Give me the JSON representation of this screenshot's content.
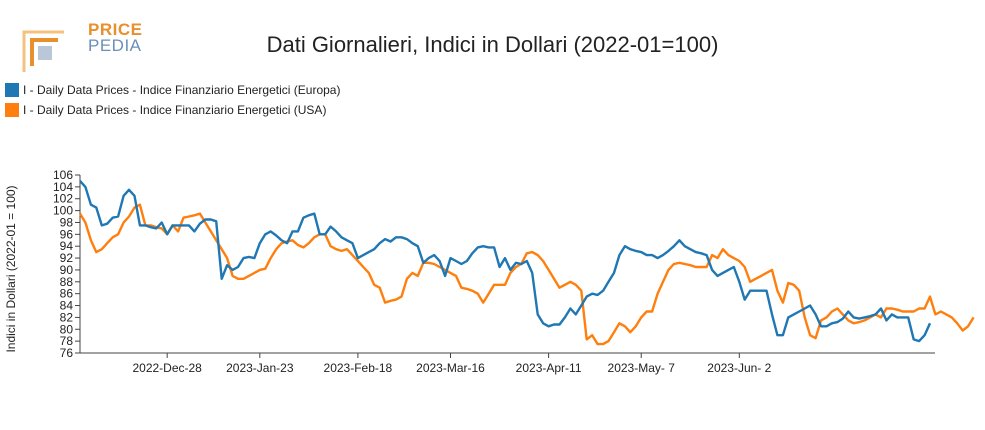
{
  "logo": {
    "word1": "PRICE",
    "word2": "PEDIA"
  },
  "chart_data": {
    "type": "line",
    "title": "Dati Giornalieri, Indici in Dollari (2022-01=100)",
    "ylabel": "Indici in Dollari (2022-01 = 100)",
    "xlabel": "",
    "ylim": [
      76,
      106
    ],
    "yticks": [
      76,
      78,
      80,
      82,
      84,
      86,
      88,
      90,
      92,
      94,
      96,
      98,
      100,
      102,
      104,
      106
    ],
    "x_tick_labels": [
      {
        "index": 16,
        "label": "2022-Dec-28"
      },
      {
        "index": 33,
        "label": "2023-Jan-23"
      },
      {
        "index": 51,
        "label": "2023-Feb-18"
      },
      {
        "index": 68,
        "label": "2023-Mar-16"
      },
      {
        "index": 86,
        "label": "2023-Apr-11"
      },
      {
        "index": 103,
        "label": "2023-May- 7"
      },
      {
        "index": 121,
        "label": "2023-Jun- 2"
      }
    ],
    "grid": false,
    "legend": "top-left",
    "series": [
      {
        "name": "I - Daily Data Prices - Indice Finanziario Energetici (Europa)",
        "color": "#1f77b4",
        "values": [
          105,
          104,
          101,
          100.5,
          97.5,
          97.8,
          98.8,
          99,
          102.5,
          103.5,
          102.5,
          97.5,
          97.5,
          97.2,
          97,
          98,
          96,
          97.5,
          97.5,
          97.5,
          97.5,
          96.5,
          97.8,
          98.5,
          98.5,
          98.2,
          88.5,
          90.8,
          90,
          90.5,
          92,
          92.2,
          92,
          94.5,
          96,
          96.5,
          95.8,
          95,
          94.5,
          96.5,
          96.5,
          98.8,
          99.2,
          99.5,
          96,
          96,
          97.3,
          96.5,
          95.5,
          95,
          94.5,
          92,
          92.5,
          93,
          93.5,
          94.5,
          95.2,
          94.8,
          95.5,
          95.5,
          95.2,
          94.5,
          94,
          91.2,
          92,
          92.5,
          91.5,
          89,
          92,
          91.5,
          91,
          91.5,
          92.8,
          93.8,
          94,
          93.8,
          93.8,
          90.5,
          92,
          90,
          91.2,
          91,
          91.5,
          89.5,
          82.5,
          81,
          80.5,
          80.8,
          80.8,
          82,
          83.5,
          82.5,
          84,
          85.5,
          86,
          85.8,
          86.5,
          88,
          89.5,
          92.5,
          94,
          93.5,
          93.2,
          93,
          92.5,
          92.5,
          92,
          92.5,
          93.2,
          94,
          95,
          94,
          93.5,
          93,
          92.8,
          92.5,
          90,
          89,
          89.5,
          90,
          90.5,
          88,
          85,
          86.5,
          86.5,
          86.5,
          86.5,
          82.5,
          79,
          79,
          82,
          82.5,
          83,
          83.5,
          84,
          82.5,
          80.5,
          80.5,
          81,
          81.2,
          81.8,
          83,
          82,
          81.8,
          82,
          82.2,
          82.5,
          83.5,
          81.5,
          82.5,
          82,
          82,
          82,
          78.3,
          78,
          79,
          81
        ]
      },
      {
        "name": "I - Daily Data Prices - Indice Finanziario Energetici (USA)",
        "color": "#ff7f0e",
        "values": [
          99.5,
          98,
          95,
          93,
          93.5,
          94.5,
          95.5,
          96,
          98,
          99,
          100.5,
          101,
          97.5,
          97.5,
          97.2,
          97,
          96,
          97.5,
          96.5,
          98.8,
          99,
          99.2,
          99.5,
          98,
          96.5,
          95,
          93.5,
          92,
          89,
          88.5,
          88.5,
          89,
          89.5,
          90,
          90.2,
          92,
          93.5,
          94.5,
          94.8,
          95,
          94.2,
          93.8,
          94.5,
          95.5,
          96,
          96,
          94,
          93.5,
          93.2,
          93.5,
          92.5,
          91.5,
          90.5,
          89.5,
          87.5,
          87,
          84.5,
          84.8,
          85,
          85.5,
          88.5,
          89.5,
          89,
          91.2,
          91.2,
          91,
          90.5,
          90,
          89.5,
          89,
          87,
          86.8,
          86.5,
          86,
          84.5,
          86,
          87.5,
          87.5,
          87.5,
          89.5,
          90.5,
          91,
          92.8,
          93,
          92.5,
          91.5,
          90,
          88.5,
          87,
          87.5,
          88,
          87.5,
          86.5,
          78.3,
          79,
          77.5,
          77.5,
          78,
          79.5,
          81,
          80.5,
          79.5,
          80.5,
          82,
          83,
          83,
          86,
          88,
          90,
          91,
          91.2,
          91,
          90.8,
          90.5,
          90.5,
          90.5,
          92.5,
          92,
          93.5,
          92.5,
          92,
          91.5,
          90.5,
          88,
          88.5,
          89,
          89.5,
          90,
          86.5,
          84.5,
          87.8,
          87.5,
          86.5,
          82,
          79,
          78.5,
          81.5,
          82,
          83,
          83.5,
          82.5,
          81.5,
          81,
          81.2,
          81.5,
          82,
          82.5,
          82,
          83.5,
          83.5,
          83.3,
          83,
          83,
          83,
          83.5,
          83.5,
          85.5,
          82.5,
          83,
          82.5,
          82,
          81,
          79.8,
          80.5,
          82
        ]
      }
    ]
  }
}
